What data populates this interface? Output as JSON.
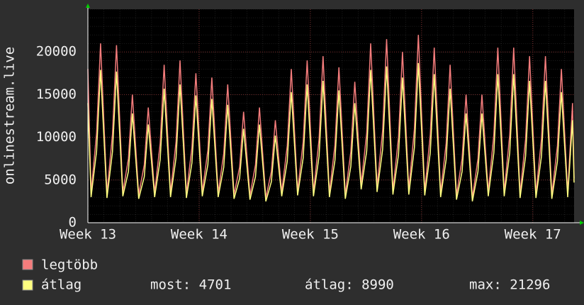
{
  "chart_data": {
    "type": "line",
    "y_label": "onlinestream.live",
    "x": [
      0,
      0.2,
      0.55,
      0.8,
      1.2,
      1.55,
      1.8,
      2.2,
      2.55,
      2.8,
      3.2,
      3.55,
      3.8,
      4.2,
      4.55,
      4.8,
      5.2,
      5.55,
      5.8,
      6.2,
      6.55,
      6.8,
      7.2,
      7.55,
      7.8,
      8.2,
      8.55,
      8.8,
      9.2,
      9.55,
      9.8,
      10.2,
      10.55,
      10.8,
      11.2,
      11.55,
      11.8,
      12.2,
      12.55,
      12.8,
      13.2,
      13.55,
      13.8,
      14.2,
      14.55,
      14.8,
      15.2,
      15.55,
      15.8,
      16.2,
      16.55,
      16.8,
      17.2,
      17.55,
      17.8,
      18.2,
      18.55,
      18.8,
      19.2,
      19.55,
      19.8,
      20.2,
      20.55,
      20.8,
      21.2,
      21.55,
      21.8,
      22.2,
      22.55,
      22.8,
      23.2,
      23.55,
      23.8,
      24.2,
      24.55,
      24.8,
      25.2,
      25.55,
      25.8,
      26.2,
      26.55,
      26.8,
      27.2,
      27.55,
      27.8,
      28.2,
      28.55,
      28.8,
      29.2,
      29.55,
      29.8,
      30.2,
      30.5,
      30.6
    ],
    "series": [
      {
        "name": "legtöbb",
        "color": "#f47c7c",
        "values": [
          18000,
          3500,
          10500,
          21000,
          3400,
          10400,
          20800,
          3600,
          7500,
          15000,
          3300,
          6800,
          13500,
          3500,
          9300,
          18500,
          3500,
          9500,
          19000,
          3400,
          8800,
          17500,
          3600,
          8500,
          17000,
          3500,
          8100,
          16200,
          3300,
          6500,
          13000,
          3200,
          6800,
          13500,
          2900,
          6000,
          12000,
          3600,
          9000,
          18000,
          3700,
          9500,
          19000,
          3600,
          9800,
          19500,
          3500,
          9100,
          18200,
          3300,
          8300,
          16500,
          4500,
          10500,
          21000,
          4200,
          10800,
          21500,
          3800,
          10000,
          20000,
          3900,
          11000,
          22000,
          3700,
          10300,
          20500,
          3500,
          9300,
          18500,
          3200,
          7500,
          15000,
          2900,
          7500,
          15000,
          3600,
          10300,
          20500,
          3600,
          10300,
          20500,
          3400,
          9800,
          19500,
          3400,
          9800,
          19500,
          3300,
          9000,
          18000,
          3500,
          14000,
          5200
        ]
      },
      {
        "name": "átlag",
        "color": "#ffff80",
        "values": [
          14000,
          3000,
          8400,
          17900,
          2900,
          8300,
          17700,
          3100,
          6000,
          12800,
          2800,
          5400,
          11500,
          3000,
          7400,
          15700,
          3000,
          7600,
          16200,
          2900,
          7000,
          14900,
          3100,
          6800,
          14500,
          3000,
          6500,
          13800,
          2800,
          5200,
          11000,
          2700,
          5400,
          11500,
          2500,
          4800,
          10200,
          3100,
          7200,
          15300,
          3200,
          7600,
          16200,
          3100,
          7800,
          16600,
          3000,
          7300,
          15500,
          2800,
          6600,
          14000,
          3900,
          8400,
          17900,
          3600,
          8600,
          18300,
          3300,
          8000,
          17000,
          3300,
          8800,
          18700,
          3200,
          8200,
          17400,
          3000,
          7400,
          15700,
          2700,
          6000,
          12800,
          2500,
          6000,
          12800,
          3100,
          8200,
          17400,
          3100,
          8200,
          17400,
          2900,
          7800,
          16600,
          2900,
          7800,
          16600,
          2800,
          7200,
          15300,
          3000,
          12000,
          4701
        ]
      }
    ],
    "xlim": [
      0,
      30.6
    ],
    "xticks": [
      {
        "value": 0,
        "label": "Week 13"
      },
      {
        "value": 7,
        "label": "Week 14"
      },
      {
        "value": 14,
        "label": "Week 15"
      },
      {
        "value": 21,
        "label": "Week 16"
      },
      {
        "value": 28,
        "label": "Week 17"
      }
    ],
    "ylim": [
      0,
      25000
    ],
    "yticks": [
      0,
      5000,
      10000,
      15000,
      20000
    ],
    "grid": true,
    "stats": [
      "most: 4701",
      "átlag: 8990",
      "max: 21296"
    ]
  }
}
